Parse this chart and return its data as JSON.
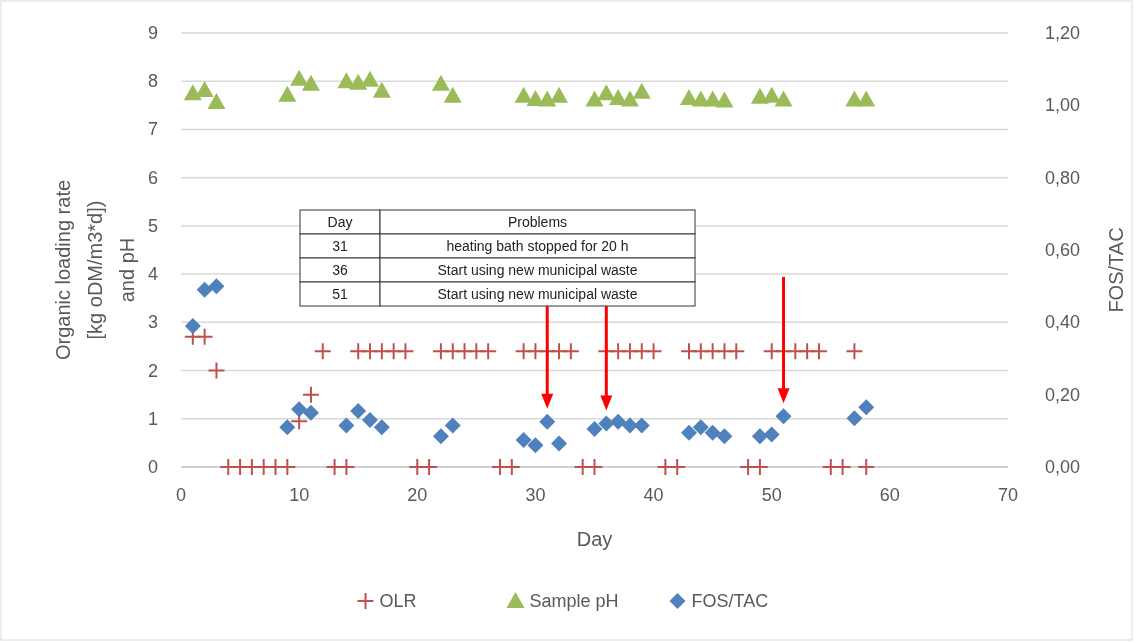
{
  "chart_data": {
    "type": "scatter",
    "xlabel": "Day",
    "ylabel": "Organic loading rate\n[kg oDM/m3*d])\nand pH",
    "y2label": "FOS/TAC",
    "xlim": [
      0,
      70
    ],
    "xticks": [
      0,
      10,
      20,
      30,
      40,
      50,
      60,
      70
    ],
    "ylim": [
      0,
      9
    ],
    "yticks": [
      0,
      1,
      2,
      3,
      4,
      5,
      6,
      7,
      8,
      9
    ],
    "y2lim": [
      0,
      1.2
    ],
    "y2ticks": [
      {
        "value": 0,
        "label": "0,00"
      },
      {
        "value": 0.2,
        "label": "0,20"
      },
      {
        "value": 0.4,
        "label": "0,40"
      },
      {
        "value": 0.6,
        "label": "0,60"
      },
      {
        "value": 0.8,
        "label": "0,80"
      },
      {
        "value": 1,
        "label": "1,00"
      },
      {
        "value": 1.2,
        "label": "1,20"
      }
    ],
    "grid": "y",
    "legend": "bottom",
    "series": [
      {
        "name": "OLR",
        "color": "#c0504d",
        "marker": "cross",
        "x": [
          1,
          2,
          3,
          4,
          5,
          6,
          7,
          8,
          9,
          10,
          11,
          12,
          13,
          14,
          15,
          16,
          17,
          18,
          19,
          20,
          21,
          22,
          23,
          24,
          25,
          26,
          27,
          28,
          29,
          30,
          31,
          32,
          33,
          34,
          35,
          36,
          37,
          38,
          39,
          40,
          41,
          42,
          43,
          44,
          45,
          46,
          47,
          48,
          49,
          50,
          51,
          52,
          53,
          54,
          55,
          56,
          57,
          58
        ],
        "values": [
          2.7,
          2.7,
          2.0,
          0,
          0,
          0,
          0,
          0,
          0,
          0.95,
          1.5,
          2.4,
          0,
          0,
          2.4,
          2.4,
          2.4,
          2.4,
          2.4,
          0,
          0,
          2.4,
          2.4,
          2.4,
          2.4,
          2.4,
          0,
          0,
          2.4,
          2.4,
          2.4,
          2.4,
          2.4,
          0,
          0,
          2.4,
          2.4,
          2.4,
          2.4,
          2.4,
          0,
          0,
          2.4,
          2.4,
          2.4,
          2.4,
          2.4,
          0,
          0,
          2.4,
          2.4,
          2.4,
          2.4,
          2.4,
          0,
          0,
          2.4,
          0
        ]
      },
      {
        "name": "Sample pH",
        "color": "#9bbb59",
        "marker": "triangle",
        "x": [
          1,
          2,
          3,
          9,
          10,
          11,
          14,
          15,
          16,
          17,
          22,
          23,
          29,
          30,
          31,
          32,
          35,
          36,
          37,
          38,
          39,
          43,
          44,
          45,
          46,
          49,
          50,
          51,
          57,
          58
        ],
        "values": [
          7.75,
          7.82,
          7.57,
          7.72,
          8.05,
          7.95,
          8.0,
          7.97,
          8.03,
          7.8,
          7.95,
          7.7,
          7.7,
          7.63,
          7.62,
          7.7,
          7.62,
          7.75,
          7.65,
          7.62,
          7.78,
          7.65,
          7.62,
          7.62,
          7.6,
          7.68,
          7.7,
          7.62,
          7.62,
          7.62
        ]
      },
      {
        "name": "FOS/TAC",
        "color": "#4f81bd",
        "marker": "diamond",
        "axis": "y2",
        "x": [
          1,
          2,
          3,
          9,
          10,
          11,
          14,
          15,
          16,
          17,
          22,
          23,
          29,
          30,
          31,
          32,
          35,
          36,
          37,
          38,
          39,
          43,
          44,
          45,
          46,
          49,
          50,
          51,
          57,
          58
        ],
        "values": [
          0.39,
          0.49,
          0.5,
          0.11,
          0.16,
          0.15,
          0.115,
          0.155,
          0.13,
          0.11,
          0.085,
          0.115,
          0.075,
          0.06,
          0.125,
          0.065,
          0.105,
          0.12,
          0.125,
          0.115,
          0.115,
          0.095,
          0.11,
          0.095,
          0.085,
          0.085,
          0.09,
          0.14,
          0.135,
          0.165
        ]
      }
    ],
    "annotations": [
      "Day",
      "Problems",
      "31",
      "heating bath stopped for 20 h",
      "36",
      "Start using new municipal waste",
      "51",
      "Start using new municipal waste"
    ]
  }
}
